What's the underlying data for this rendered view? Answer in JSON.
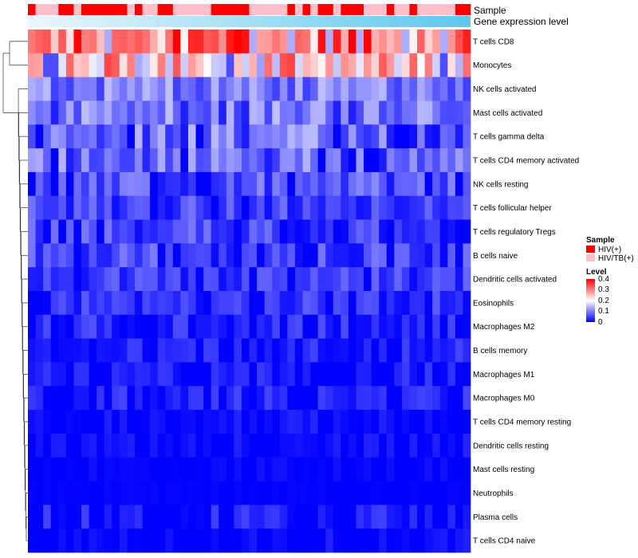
{
  "chart_data": {
    "type": "heatmap",
    "title": "",
    "annotations": {
      "sample_label": "Sample",
      "gene_label": "Gene expression level",
      "sample_groups": [
        "HIV(+)",
        "HIV/TB(+)",
        "HIV/TB(+)",
        "HIV/TB(+)",
        "HIV(+)",
        "HIV(+)",
        "HIV/TB(+)",
        "HIV(+)",
        "HIV(+)",
        "HIV(+)",
        "HIV(+)",
        "HIV(+)",
        "HIV(+)",
        "HIV/TB(+)",
        "HIV(+)",
        "HIV/TB(+)",
        "HIV/TB(+)",
        "HIV(+)",
        "HIV(+)",
        "HIV/TB(+)",
        "HIV/TB(+)",
        "HIV/TB(+)",
        "HIV/TB(+)",
        "HIV/TB(+)",
        "HIV(+)",
        "HIV(+)",
        "HIV(+)",
        "HIV(+)",
        "HIV(+)",
        "HIV/TB(+)",
        "HIV/TB(+)",
        "HIV/TB(+)",
        "HIV/TB(+)",
        "HIV/TB(+)",
        "HIV(+)",
        "HIV/TB(+)",
        "HIV(+)",
        "HIV/TB(+)",
        "HIV(+)",
        "HIV(+)",
        "HIV/TB(+)",
        "HIV(+)",
        "HIV(+)",
        "HIV(+)",
        "HIV/TB(+)",
        "HIV/TB(+)",
        "HIV/TB(+)",
        "HIV(+)",
        "HIV/TB(+)",
        "HIV/TB(+)",
        "HIV(+)",
        "HIV/TB(+)",
        "HIV/TB(+)",
        "HIV/TB(+)",
        "HIV/TB(+)",
        "HIV/TB(+)",
        "HIV(+)",
        "HIV(+)"
      ]
    },
    "rows": [
      "T cells CD8",
      "Monocytes",
      "NK cells activated",
      "Mast cells activated",
      "T cells gamma delta",
      "T cells CD4 memory activated",
      "NK cells resting",
      "T cells follicular helper",
      "T cells regulatory  Tregs",
      "B cells naive",
      "Dendritic cells activated",
      "Eosinophils",
      "Macrophages M2",
      "B cells memory",
      "Macrophages M1",
      "Macrophages M0",
      "T cells CD4 memory resting",
      "Dendritic cells resting",
      "Mast cells resting",
      "Neutrophils",
      "Plasma cells",
      "T cells CD4 naive"
    ],
    "n_columns": 58,
    "row_means": [
      0.3,
      0.24,
      0.11,
      0.1,
      0.08,
      0.08,
      0.06,
      0.05,
      0.045,
      0.05,
      0.04,
      0.035,
      0.03,
      0.025,
      0.015,
      0.02,
      0.01,
      0.008,
      0.004,
      0.002,
      0.015,
      0.008
    ],
    "row_spread": [
      0.11,
      0.12,
      0.04,
      0.05,
      0.07,
      0.06,
      0.05,
      0.04,
      0.05,
      0.05,
      0.04,
      0.04,
      0.035,
      0.03,
      0.03,
      0.035,
      0.02,
      0.02,
      0.01,
      0.004,
      0.04,
      0.025
    ],
    "color_scale": {
      "min": 0,
      "max": 0.4,
      "low": "#0000ff",
      "mid": "#ffffff",
      "high": "#ff0000",
      "midpoint": 0.2
    },
    "legend": {
      "sample_title": "Sample",
      "sample_items": [
        {
          "label": "HIV(+)",
          "color": "#ff0000"
        },
        {
          "label": "HIV/TB(+)",
          "color": "#ffc0cb"
        }
      ],
      "level_title": "Level",
      "level_ticks": [
        "0.4",
        "0.3",
        "0.2",
        "0.1",
        "0"
      ]
    }
  }
}
